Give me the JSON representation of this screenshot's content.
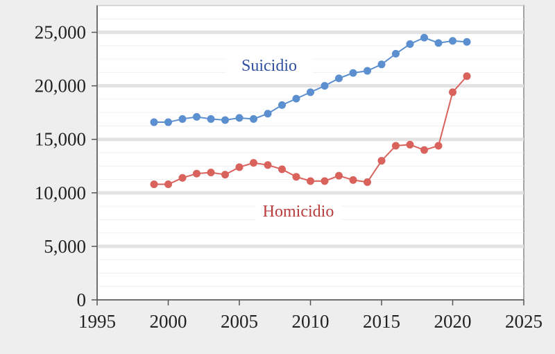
{
  "chart_data": {
    "type": "line",
    "title": "",
    "xlabel": "",
    "ylabel": "",
    "xlim": [
      1995,
      2025
    ],
    "ylim": [
      0,
      27500
    ],
    "x_ticks": [
      1995,
      2000,
      2005,
      2010,
      2015,
      2020,
      2025
    ],
    "y_ticks": [
      0,
      5000,
      10000,
      15000,
      20000,
      25000
    ],
    "x_tick_labels": [
      "1995",
      "2000",
      "2005",
      "2010",
      "2015",
      "2020",
      "2025"
    ],
    "y_tick_labels": [
      "0",
      "5,000",
      "10,000",
      "15,000",
      "20,000",
      "25,000"
    ],
    "grid": "horizontal",
    "legend": "none",
    "x": [
      1999,
      2000,
      2001,
      2002,
      2003,
      2004,
      2005,
      2006,
      2007,
      2008,
      2009,
      2010,
      2011,
      2012,
      2013,
      2014,
      2015,
      2016,
      2017,
      2018,
      2019,
      2020,
      2021
    ],
    "series": [
      {
        "name": "Suicidio",
        "color": "#5b8fcf",
        "label_color": "#2f4fa0",
        "values": [
          16600,
          16600,
          16900,
          17100,
          16900,
          16800,
          17000,
          16900,
          17400,
          18200,
          18800,
          19400,
          20000,
          20700,
          21200,
          21400,
          22000,
          23000,
          23900,
          24500,
          24000,
          24200,
          24100
        ]
      },
      {
        "name": "Homicidio",
        "color": "#d9625d",
        "label_color": "#b83c3c",
        "values": [
          10800,
          10800,
          11400,
          11800,
          11900,
          11700,
          12400,
          12800,
          12600,
          12200,
          11500,
          11100,
          11100,
          11600,
          11200,
          11000,
          13000,
          14400,
          14500,
          14000,
          14400,
          19400,
          20900
        ]
      }
    ]
  }
}
